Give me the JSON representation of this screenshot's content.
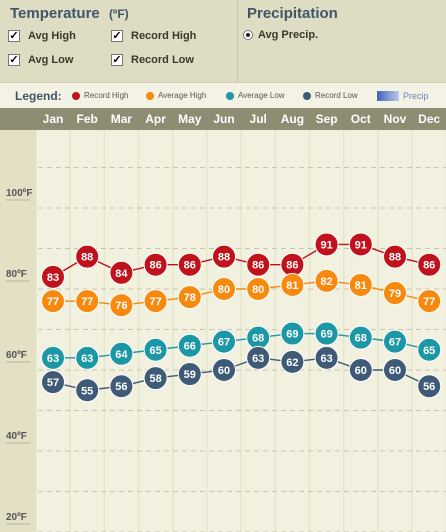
{
  "controls": {
    "temperature_title": "Temperature",
    "temperature_unit": "(ºF)",
    "precipitation_title": "Precipitation",
    "checkboxes": [
      {
        "label": "Avg High",
        "checked": true
      },
      {
        "label": "Record High",
        "checked": true
      },
      {
        "label": "Avg Low",
        "checked": true
      },
      {
        "label": "Record Low",
        "checked": true
      }
    ],
    "precip_option": {
      "label": "Avg Precip.",
      "selected": true
    }
  },
  "legend": {
    "title": "Legend:",
    "items": [
      {
        "label": "Record High",
        "color": "#c0121c"
      },
      {
        "label": "Average High",
        "color": "#f7890f"
      },
      {
        "label": "Average Low",
        "color": "#1b97a6"
      },
      {
        "label": "Record Low",
        "color": "#3e5a76"
      }
    ],
    "precip_label": "Precip"
  },
  "chart_data": {
    "type": "line",
    "categories": [
      "Jan",
      "Feb",
      "Mar",
      "Apr",
      "May",
      "Jun",
      "Jul",
      "Aug",
      "Sep",
      "Oct",
      "Nov",
      "Dec"
    ],
    "ylim": [
      20,
      120
    ],
    "y_ticks": [
      20,
      40,
      60,
      80,
      100
    ],
    "y_tick_labels": [
      "20ºF",
      "40ºF",
      "60ºF",
      "80ºF",
      "100ºF"
    ],
    "grid": true,
    "series": [
      {
        "name": "Record High",
        "color": "#c0121c",
        "values": [
          83,
          88,
          84,
          86,
          86,
          88,
          86,
          86,
          91,
          91,
          88,
          86
        ]
      },
      {
        "name": "Average High",
        "color": "#f7890f",
        "values": [
          77,
          77,
          76,
          77,
          78,
          80,
          80,
          81,
          82,
          81,
          79,
          77
        ]
      },
      {
        "name": "Average Low",
        "color": "#1b97a6",
        "values": [
          63,
          63,
          64,
          65,
          66,
          67,
          68,
          69,
          69,
          68,
          67,
          65
        ]
      },
      {
        "name": "Record Low",
        "color": "#3e5a76",
        "values": [
          57,
          55,
          56,
          58,
          59,
          60,
          63,
          62,
          63,
          60,
          60,
          56
        ]
      }
    ]
  }
}
